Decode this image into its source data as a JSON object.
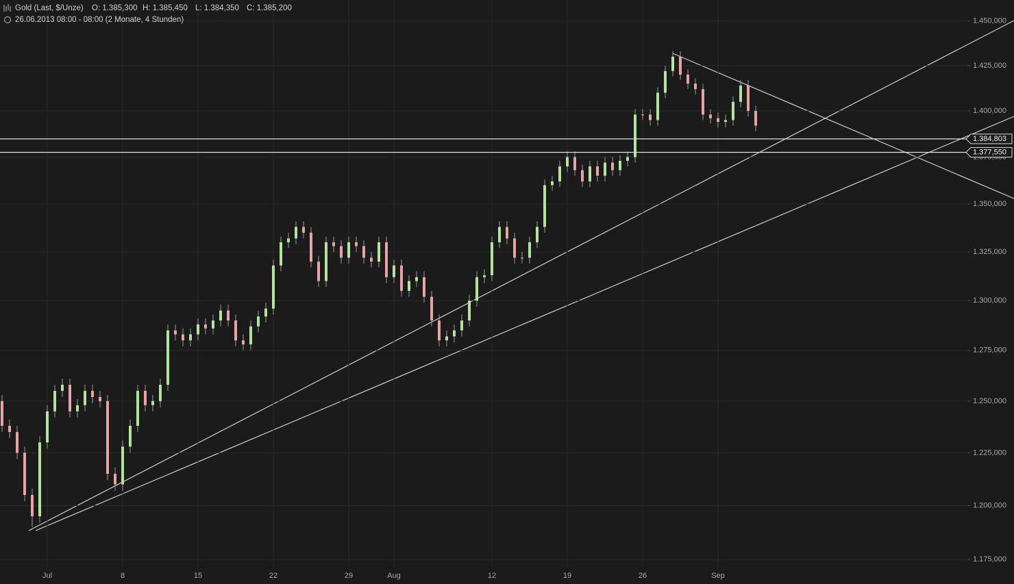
{
  "chart_data": {
    "type": "candlestick",
    "title": "Gold (Last, $/Unze)",
    "ohlc_header": [
      "O: 1.385,300",
      "H: 1.385,450",
      "L: 1.384,350",
      "C: 1.385,200"
    ],
    "subtitle": "26.06.2013 08:00 - 08:00 (2 Monate, 4 Stunden)",
    "log_scale": true,
    "grid": true,
    "up_color": "#b4e39a",
    "down_color": "#e9a3a3",
    "categories": [
      null,
      null,
      null,
      null,
      null,
      null,
      "Jul",
      null,
      null,
      null,
      null,
      null,
      null,
      null,
      null,
      null,
      "8",
      null,
      null,
      null,
      null,
      null,
      null,
      null,
      null,
      null,
      "15",
      null,
      null,
      null,
      null,
      null,
      null,
      null,
      null,
      null,
      "22",
      null,
      null,
      null,
      null,
      null,
      null,
      null,
      null,
      null,
      "29",
      null,
      null,
      null,
      null,
      null,
      "Aug",
      null,
      null,
      null,
      null,
      null,
      null,
      null,
      null,
      null,
      null,
      null,
      null,
      "12",
      null,
      null,
      null,
      null,
      null,
      null,
      null,
      null,
      null,
      "19",
      null,
      null,
      null,
      null,
      null,
      null,
      null,
      null,
      null,
      "26",
      null,
      null,
      null,
      null,
      null,
      null,
      null,
      null,
      null,
      "Sep",
      null,
      null,
      null,
      null,
      null
    ],
    "open": [
      1250,
      1238,
      1235,
      1225,
      1205,
      1195,
      1230,
      1245,
      1255,
      1258,
      1245,
      1248,
      1255,
      1252,
      1250,
      1215,
      1210,
      1228,
      1238,
      1255,
      1248,
      1250,
      1258,
      1285,
      1283,
      1280,
      1283,
      1288,
      1286,
      1290,
      1295,
      1290,
      1280,
      1278,
      1287,
      1292,
      1296,
      1318,
      1330,
      1332,
      1338,
      1335,
      1320,
      1310,
      1330,
      1328,
      1322,
      1330,
      1328,
      1322,
      1320,
      1330,
      1312,
      1318,
      1305,
      1310,
      1312,
      1302,
      1290,
      1280,
      1282,
      1285,
      1290,
      1300,
      1312,
      1313,
      1330,
      1338,
      1332,
      1322,
      1322,
      1330,
      1338,
      1360,
      1362,
      1370,
      1375,
      1368,
      1362,
      1370,
      1365,
      1372,
      1368,
      1373,
      1375,
      1398,
      1398,
      1395,
      1410,
      1422,
      1430,
      1420,
      1415,
      1412,
      1398,
      1396,
      1394,
      1395,
      1405,
      1414,
      1400
    ],
    "high": [
      1253,
      1241,
      1238,
      1228,
      1208,
      1233,
      1248,
      1258,
      1261,
      1261,
      1251,
      1258,
      1258,
      1255,
      1253,
      1218,
      1231,
      1241,
      1258,
      1258,
      1253,
      1261,
      1288,
      1288,
      1286,
      1286,
      1291,
      1291,
      1293,
      1298,
      1298,
      1293,
      1283,
      1290,
      1295,
      1299,
      1321,
      1333,
      1335,
      1341,
      1341,
      1338,
      1323,
      1333,
      1333,
      1331,
      1333,
      1333,
      1331,
      1325,
      1333,
      1333,
      1321,
      1321,
      1313,
      1315,
      1315,
      1305,
      1293,
      1285,
      1288,
      1293,
      1303,
      1315,
      1316,
      1333,
      1341,
      1341,
      1335,
      1325,
      1333,
      1341,
      1363,
      1365,
      1373,
      1378,
      1378,
      1371,
      1373,
      1373,
      1375,
      1375,
      1376,
      1378,
      1401,
      1401,
      1401,
      1413,
      1425,
      1433,
      1433,
      1423,
      1418,
      1415,
      1401,
      1399,
      1398,
      1408,
      1417,
      1417,
      1403
    ],
    "low": [
      1235,
      1232,
      1222,
      1202,
      1190,
      1192,
      1227,
      1242,
      1252,
      1242,
      1242,
      1245,
      1249,
      1247,
      1212,
      1207,
      1207,
      1225,
      1235,
      1245,
      1245,
      1247,
      1255,
      1280,
      1277,
      1277,
      1280,
      1283,
      1283,
      1287,
      1287,
      1277,
      1275,
      1275,
      1284,
      1289,
      1293,
      1315,
      1327,
      1329,
      1332,
      1317,
      1307,
      1307,
      1325,
      1319,
      1319,
      1325,
      1319,
      1317,
      1317,
      1309,
      1309,
      1302,
      1302,
      1307,
      1299,
      1287,
      1277,
      1277,
      1279,
      1282,
      1287,
      1297,
      1309,
      1310,
      1327,
      1329,
      1319,
      1319,
      1319,
      1327,
      1335,
      1357,
      1359,
      1367,
      1365,
      1359,
      1359,
      1362,
      1362,
      1365,
      1365,
      1370,
      1372,
      1395,
      1392,
      1392,
      1407,
      1419,
      1417,
      1412,
      1409,
      1395,
      1393,
      1391,
      1391,
      1392,
      1402,
      1397,
      1389
    ],
    "close": [
      1238,
      1235,
      1225,
      1205,
      1195,
      1230,
      1245,
      1255,
      1258,
      1245,
      1248,
      1255,
      1252,
      1250,
      1215,
      1210,
      1228,
      1238,
      1255,
      1248,
      1250,
      1258,
      1285,
      1283,
      1280,
      1283,
      1288,
      1286,
      1290,
      1295,
      1290,
      1280,
      1278,
      1287,
      1292,
      1296,
      1318,
      1330,
      1332,
      1338,
      1335,
      1320,
      1310,
      1330,
      1328,
      1322,
      1330,
      1328,
      1322,
      1320,
      1330,
      1312,
      1318,
      1305,
      1310,
      1312,
      1302,
      1290,
      1280,
      1282,
      1285,
      1290,
      1300,
      1312,
      1313,
      1330,
      1338,
      1332,
      1322,
      1322,
      1330,
      1338,
      1360,
      1362,
      1370,
      1375,
      1368,
      1362,
      1370,
      1365,
      1372,
      1368,
      1373,
      1375,
      1398,
      1398,
      1395,
      1410,
      1422,
      1430,
      1420,
      1415,
      1412,
      1398,
      1396,
      1394,
      1395,
      1405,
      1414,
      1400,
      1392
    ],
    "ylim": [
      1171,
      1462
    ],
    "yticks": [
      {
        "value": 1175,
        "label": "1.175,000"
      },
      {
        "value": 1200,
        "label": "1.200,000"
      },
      {
        "value": 1225,
        "label": "1.225,000"
      },
      {
        "value": 1250,
        "label": "1.250,000"
      },
      {
        "value": 1275,
        "label": "1.275,000"
      },
      {
        "value": 1300,
        "label": "1.300,000"
      },
      {
        "value": 1325,
        "label": "1.325,000"
      },
      {
        "value": 1350,
        "label": "1.350,000"
      },
      {
        "value": 1375,
        "label": "1.375,000"
      },
      {
        "value": 1400,
        "label": "1.400,000"
      },
      {
        "value": 1425,
        "label": "1.425,000"
      },
      {
        "value": 1450,
        "label": "1.450,000"
      }
    ],
    "hlines": [
      {
        "value": 1384.803,
        "label": "1.384,803"
      },
      {
        "value": 1377.55,
        "label": "1.377,550"
      }
    ]
  }
}
